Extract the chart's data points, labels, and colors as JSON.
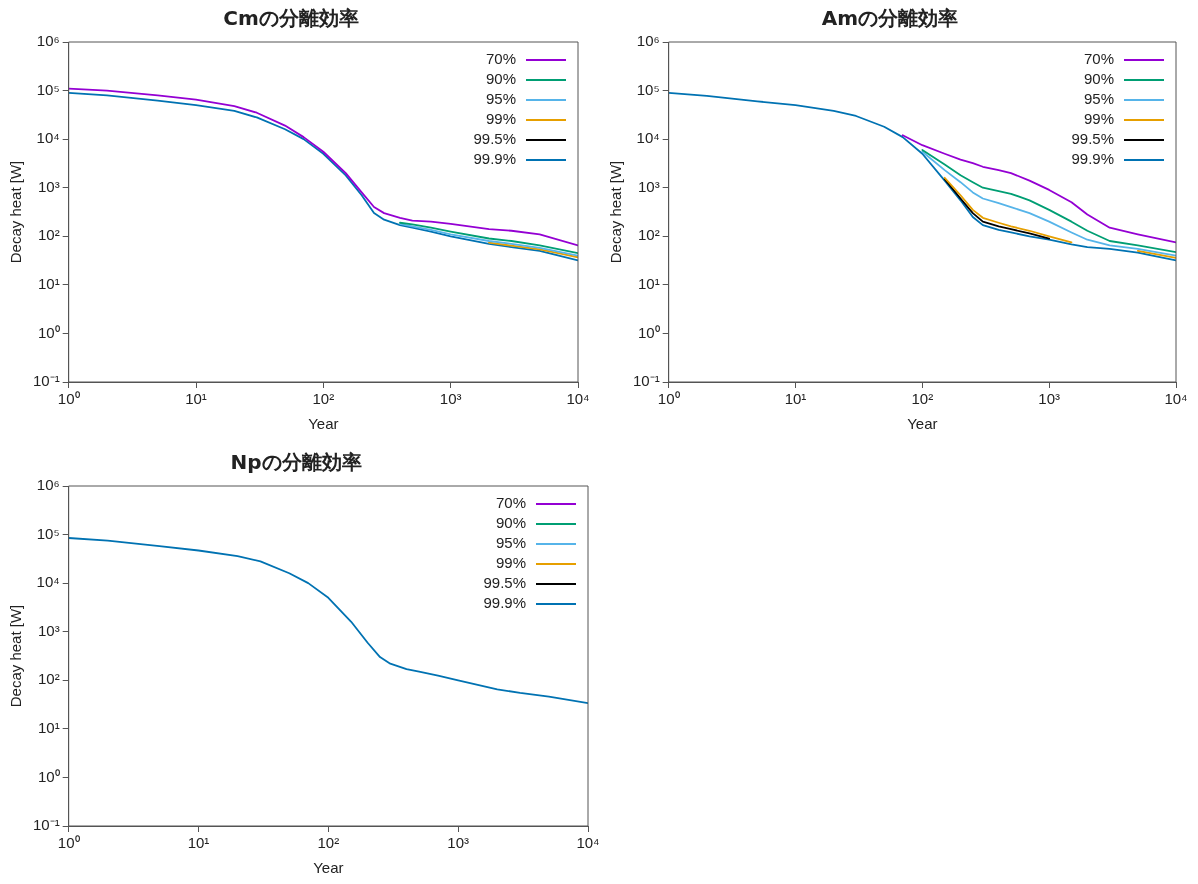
{
  "chart_data": [
    {
      "type": "line",
      "title": "Cmの分離効率",
      "xlabel": "Year",
      "ylabel": "Decay heat [W]",
      "log": "xy",
      "grid": false,
      "legend": "top right",
      "marker": "none",
      "line_style": "solid",
      "xlim": [
        1,
        10000
      ],
      "xticks": [
        {
          "value": 1,
          "label": "10⁰"
        },
        {
          "value": 10,
          "label": "10¹"
        },
        {
          "value": 100,
          "label": "10²"
        },
        {
          "value": 1000,
          "label": "10³"
        },
        {
          "value": 10000,
          "label": "10⁴"
        }
      ],
      "ylim": [
        0.1,
        1000000
      ],
      "yticks": [
        {
          "value": 0.1,
          "label": "10⁻¹"
        },
        {
          "value": 1,
          "label": "10⁰"
        },
        {
          "value": 10,
          "label": "10¹"
        },
        {
          "value": 100,
          "label": "10²"
        },
        {
          "value": 1000,
          "label": "10³"
        },
        {
          "value": 10000,
          "label": "10⁴"
        },
        {
          "value": 100000,
          "label": "10⁵"
        },
        {
          "value": 1000000,
          "label": "10⁶"
        }
      ],
      "x": [
        1,
        2,
        5,
        10,
        20,
        30,
        50,
        70,
        100,
        150,
        200,
        250,
        300,
        400,
        500,
        700,
        1000,
        2000,
        3000,
        5000,
        10000
      ],
      "series": [
        {
          "name": "70%",
          "color": "#9400d3",
          "values": [
            110000,
            100000,
            80000,
            65000,
            48000,
            35000,
            19000,
            11000,
            5500,
            2000,
            800,
            400,
            300,
            240,
            210,
            200,
            180,
            140,
            130,
            110,
            65
          ]
        },
        {
          "name": "90%",
          "color": "#009e73",
          "values": [
            null,
            null,
            null,
            null,
            null,
            null,
            null,
            null,
            null,
            null,
            null,
            null,
            null,
            190,
            175,
            150,
            125,
            90,
            80,
            65,
            45
          ]
        },
        {
          "name": "95%",
          "color": "#56b4e9",
          "values": [
            null,
            null,
            null,
            null,
            null,
            null,
            null,
            null,
            null,
            null,
            null,
            null,
            null,
            180,
            160,
            135,
            110,
            80,
            70,
            58,
            40
          ]
        },
        {
          "name": "99%",
          "color": "#e69f00",
          "values": [
            null,
            null,
            null,
            null,
            null,
            null,
            null,
            null,
            null,
            null,
            null,
            null,
            null,
            null,
            null,
            null,
            null,
            74,
            64,
            54,
            37
          ]
        },
        {
          "name": "99.5%",
          "color": "#000000",
          "values": [
            null,
            null,
            null,
            null,
            null,
            null,
            null,
            null,
            null,
            null,
            null,
            null,
            null,
            null,
            null,
            null,
            null,
            null,
            null,
            null,
            null
          ]
        },
        {
          "name": "99.9%",
          "color": "#0072b2",
          "values": [
            90000,
            80000,
            62000,
            50000,
            38000,
            28000,
            16000,
            10000,
            5000,
            1800,
            700,
            300,
            220,
            170,
            150,
            125,
            100,
            70,
            60,
            50,
            32
          ]
        }
      ]
    },
    {
      "type": "line",
      "title": "Amの分離効率",
      "xlabel": "Year",
      "ylabel": "Decay heat [W]",
      "log": "xy",
      "grid": false,
      "legend": "top right",
      "marker": "none",
      "line_style": "solid",
      "xlim": [
        1,
        10000
      ],
      "xticks": [
        {
          "value": 1,
          "label": "10⁰"
        },
        {
          "value": 10,
          "label": "10¹"
        },
        {
          "value": 100,
          "label": "10²"
        },
        {
          "value": 1000,
          "label": "10³"
        },
        {
          "value": 10000,
          "label": "10⁴"
        }
      ],
      "ylim": [
        0.1,
        1000000
      ],
      "yticks": [
        {
          "value": 0.1,
          "label": "10⁻¹"
        },
        {
          "value": 1,
          "label": "10⁰"
        },
        {
          "value": 10,
          "label": "10¹"
        },
        {
          "value": 100,
          "label": "10²"
        },
        {
          "value": 1000,
          "label": "10³"
        },
        {
          "value": 10000,
          "label": "10⁴"
        },
        {
          "value": 100000,
          "label": "10⁵"
        },
        {
          "value": 1000000,
          "label": "10⁶"
        }
      ],
      "x": [
        1,
        2,
        5,
        10,
        20,
        30,
        50,
        70,
        100,
        150,
        200,
        250,
        300,
        400,
        500,
        700,
        1000,
        1500,
        2000,
        3000,
        5000,
        10000
      ],
      "series": [
        {
          "name": "70%",
          "color": "#9400d3",
          "values": [
            null,
            null,
            null,
            null,
            null,
            null,
            null,
            12000,
            7500,
            5000,
            3800,
            3200,
            2700,
            2300,
            2000,
            1400,
            900,
            500,
            280,
            150,
            110,
            75
          ]
        },
        {
          "name": "90%",
          "color": "#009e73",
          "values": [
            null,
            null,
            null,
            null,
            null,
            null,
            null,
            null,
            6000,
            3000,
            1800,
            1300,
            1000,
            850,
            750,
            550,
            350,
            200,
            130,
            80,
            65,
            47
          ]
        },
        {
          "name": "95%",
          "color": "#56b4e9",
          "values": [
            null,
            null,
            null,
            null,
            null,
            null,
            null,
            null,
            5500,
            2300,
            1300,
            800,
            600,
            480,
            400,
            300,
            200,
            120,
            85,
            65,
            55,
            40
          ]
        },
        {
          "name": "99%",
          "color": "#e69f00",
          "values": [
            null,
            null,
            null,
            null,
            null,
            null,
            null,
            null,
            null,
            1600,
            700,
            350,
            240,
            190,
            160,
            130,
            100,
            75,
            null,
            null,
            50,
            36
          ]
        },
        {
          "name": "99.5%",
          "color": "#000000",
          "values": [
            null,
            null,
            null,
            null,
            null,
            null,
            null,
            null,
            null,
            1500,
            600,
            300,
            200,
            160,
            140,
            115,
            90,
            null,
            null,
            null,
            null,
            null
          ]
        },
        {
          "name": "99.9%",
          "color": "#0072b2",
          "values": [
            90000,
            78000,
            60000,
            50000,
            38000,
            30000,
            18000,
            11000,
            5000,
            1400,
            550,
            250,
            170,
            135,
            120,
            100,
            85,
            68,
            60,
            55,
            46,
            32
          ]
        }
      ]
    },
    {
      "type": "line",
      "title": "Npの分離効率",
      "xlabel": "Year",
      "ylabel": "Decay heat [W]",
      "log": "xy",
      "grid": false,
      "legend": "top right",
      "marker": "none",
      "line_style": "solid",
      "xlim": [
        1,
        10000
      ],
      "xticks": [
        {
          "value": 1,
          "label": "10⁰"
        },
        {
          "value": 10,
          "label": "10¹"
        },
        {
          "value": 100,
          "label": "10²"
        },
        {
          "value": 1000,
          "label": "10³"
        },
        {
          "value": 10000,
          "label": "10⁴"
        }
      ],
      "ylim": [
        0.1,
        1000000
      ],
      "yticks": [
        {
          "value": 0.1,
          "label": "10⁻¹"
        },
        {
          "value": 1,
          "label": "10⁰"
        },
        {
          "value": 10,
          "label": "10¹"
        },
        {
          "value": 100,
          "label": "10²"
        },
        {
          "value": 1000,
          "label": "10³"
        },
        {
          "value": 10000,
          "label": "10⁴"
        },
        {
          "value": 100000,
          "label": "10⁵"
        },
        {
          "value": 1000000,
          "label": "10⁶"
        }
      ],
      "x": [
        1,
        2,
        5,
        10,
        20,
        30,
        50,
        70,
        100,
        150,
        200,
        250,
        300,
        400,
        500,
        700,
        1000,
        2000,
        3000,
        5000,
        10000
      ],
      "series": [
        {
          "name": "70%",
          "color": "#9400d3",
          "values": [
            null,
            null,
            null,
            null,
            null,
            null,
            null,
            null,
            null,
            null,
            null,
            null,
            null,
            null,
            null,
            null,
            null,
            null,
            null,
            null,
            null
          ]
        },
        {
          "name": "90%",
          "color": "#009e73",
          "values": [
            null,
            null,
            null,
            null,
            null,
            null,
            null,
            null,
            null,
            null,
            null,
            null,
            null,
            null,
            null,
            null,
            null,
            null,
            null,
            null,
            null
          ]
        },
        {
          "name": "95%",
          "color": "#56b4e9",
          "values": [
            null,
            null,
            null,
            null,
            null,
            null,
            null,
            null,
            null,
            null,
            null,
            null,
            null,
            null,
            null,
            null,
            null,
            null,
            null,
            null,
            null
          ]
        },
        {
          "name": "99%",
          "color": "#e69f00",
          "values": [
            null,
            null,
            null,
            null,
            null,
            null,
            null,
            null,
            null,
            null,
            null,
            null,
            null,
            null,
            null,
            null,
            null,
            null,
            null,
            null,
            null
          ]
        },
        {
          "name": "99.5%",
          "color": "#000000",
          "values": [
            null,
            null,
            null,
            null,
            null,
            null,
            null,
            null,
            null,
            null,
            null,
            null,
            null,
            null,
            null,
            null,
            null,
            null,
            null,
            null,
            null
          ]
        },
        {
          "name": "99.9%",
          "color": "#0072b2",
          "values": [
            85000,
            75000,
            58000,
            47000,
            36000,
            28000,
            16000,
            10000,
            5000,
            1600,
            600,
            300,
            220,
            170,
            150,
            125,
            100,
            65,
            55,
            46,
            34
          ]
        }
      ]
    }
  ]
}
